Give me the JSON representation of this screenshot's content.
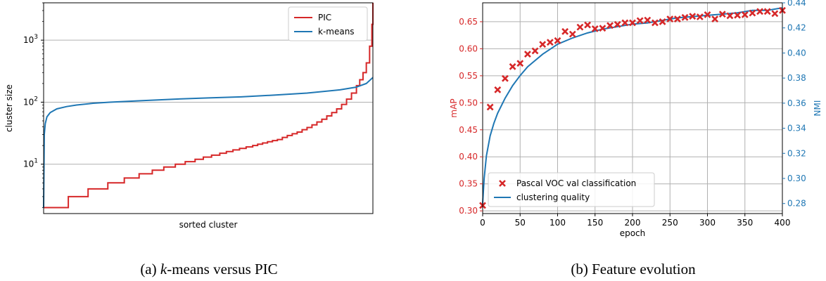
{
  "figure": {
    "caption_a": {
      "italic": "k",
      "text": "-means versus PIC"
    },
    "caption_b": "(b) Feature evolution",
    "caption_a_prefix": "(a) "
  },
  "colors": {
    "pic": "#d62728",
    "kmeans": "#1f77b4",
    "grid": "#b0b0b0"
  },
  "chart_data": [
    {
      "type": "line",
      "xlabel": "sorted cluster",
      "ylabel": "cluster size",
      "yscale": "log",
      "ylim": [
        1.6,
        4000
      ],
      "yticks": [
        {
          "value": 10,
          "base": "10",
          "exp": "1"
        },
        {
          "value": 100,
          "base": "10",
          "exp": "2"
        },
        {
          "value": 1000,
          "base": "10",
          "exp": "3"
        }
      ],
      "grid": "horizontal",
      "legend": {
        "placement": "top-right",
        "entries": [
          "PIC",
          "k-means"
        ]
      },
      "series": [
        {
          "name": "PIC",
          "steps": [
            [
              0.0,
              2
            ],
            [
              0.075,
              3
            ],
            [
              0.135,
              4
            ],
            [
              0.195,
              5
            ],
            [
              0.245,
              6
            ],
            [
              0.29,
              7
            ],
            [
              0.33,
              8
            ],
            [
              0.365,
              9
            ],
            [
              0.4,
              10
            ],
            [
              0.43,
              11
            ],
            [
              0.46,
              12
            ],
            [
              0.485,
              13
            ],
            [
              0.51,
              14
            ],
            [
              0.535,
              15
            ],
            [
              0.555,
              16
            ],
            [
              0.575,
              17
            ],
            [
              0.595,
              18
            ],
            [
              0.615,
              19
            ],
            [
              0.635,
              20
            ],
            [
              0.65,
              21
            ],
            [
              0.665,
              22
            ],
            [
              0.68,
              23
            ],
            [
              0.695,
              24
            ],
            [
              0.71,
              25
            ],
            [
              0.725,
              27
            ],
            [
              0.74,
              29
            ],
            [
              0.755,
              31
            ],
            [
              0.77,
              33
            ],
            [
              0.785,
              36
            ],
            [
              0.8,
              39
            ],
            [
              0.815,
              43
            ],
            [
              0.83,
              48
            ],
            [
              0.845,
              53
            ],
            [
              0.86,
              60
            ],
            [
              0.875,
              68
            ],
            [
              0.89,
              78
            ],
            [
              0.905,
              92
            ],
            [
              0.92,
              112
            ],
            [
              0.935,
              140
            ],
            [
              0.95,
              185
            ],
            [
              0.96,
              230
            ],
            [
              0.97,
              300
            ],
            [
              0.98,
              430
            ],
            [
              0.99,
              800
            ],
            [
              0.997,
              1800
            ],
            [
              1.0,
              4000
            ]
          ]
        },
        {
          "name": "k-means",
          "points": [
            [
              0.0,
              2
            ],
            [
              0.002,
              30
            ],
            [
              0.005,
              45
            ],
            [
              0.01,
              58
            ],
            [
              0.02,
              68
            ],
            [
              0.04,
              78
            ],
            [
              0.07,
              85
            ],
            [
              0.1,
              90
            ],
            [
              0.15,
              96
            ],
            [
              0.2,
              100
            ],
            [
              0.3,
              106
            ],
            [
              0.4,
              112
            ],
            [
              0.5,
              117
            ],
            [
              0.6,
              122
            ],
            [
              0.7,
              130
            ],
            [
              0.8,
              140
            ],
            [
              0.9,
              158
            ],
            [
              0.95,
              175
            ],
            [
              0.98,
              200
            ],
            [
              1.0,
              250
            ]
          ]
        }
      ]
    },
    {
      "type": "scatter",
      "xlabel": "epoch",
      "ylabel": "mAP",
      "ylabel_right": "NMI",
      "xlim": [
        0,
        400
      ],
      "ylim": [
        0.295,
        0.685
      ],
      "ylim_right": [
        0.272,
        0.44
      ],
      "xticks": [
        "0",
        "50",
        "100",
        "150",
        "200",
        "250",
        "300",
        "350",
        "400"
      ],
      "yticks": [
        "0.30",
        "0.35",
        "0.40",
        "0.45",
        "0.50",
        "0.55",
        "0.60",
        "0.65"
      ],
      "yticks_right": [
        "0.28",
        "0.30",
        "0.32",
        "0.34",
        "0.36",
        "0.38",
        "0.40",
        "0.42",
        "0.44"
      ],
      "grid": "both",
      "legend": {
        "placement": "lower-left",
        "entries": [
          "Pascal VOC val classification",
          "clustering quality"
        ]
      },
      "series": [
        {
          "name": "Pascal VOC val classification",
          "axis": "left",
          "x": [
            0,
            10,
            20,
            30,
            40,
            50,
            60,
            70,
            80,
            90,
            100,
            110,
            120,
            130,
            140,
            150,
            160,
            170,
            180,
            190,
            200,
            210,
            220,
            230,
            240,
            250,
            260,
            270,
            280,
            290,
            300,
            310,
            320,
            330,
            340,
            350,
            360,
            370,
            380,
            390,
            400
          ],
          "y": [
            0.31,
            0.492,
            0.524,
            0.545,
            0.567,
            0.573,
            0.59,
            0.596,
            0.608,
            0.612,
            0.615,
            0.632,
            0.627,
            0.64,
            0.644,
            0.637,
            0.638,
            0.643,
            0.645,
            0.648,
            0.648,
            0.652,
            0.653,
            0.648,
            0.65,
            0.655,
            0.655,
            0.658,
            0.66,
            0.659,
            0.663,
            0.655,
            0.664,
            0.661,
            0.662,
            0.663,
            0.666,
            0.669,
            0.669,
            0.665,
            0.671
          ]
        },
        {
          "name": "clustering quality",
          "axis": "right",
          "x": [
            0,
            2,
            5,
            10,
            15,
            20,
            30,
            40,
            50,
            60,
            70,
            80,
            90,
            100,
            120,
            140,
            160,
            180,
            200,
            220,
            240,
            260,
            280,
            300,
            320,
            340,
            360,
            380,
            400
          ],
          "y": [
            0.28,
            0.3,
            0.318,
            0.334,
            0.344,
            0.352,
            0.364,
            0.374,
            0.382,
            0.389,
            0.394,
            0.399,
            0.403,
            0.407,
            0.412,
            0.416,
            0.419,
            0.421,
            0.423,
            0.424,
            0.426,
            0.428,
            0.429,
            0.43,
            0.431,
            0.432,
            0.434,
            0.434,
            0.436
          ]
        }
      ]
    }
  ]
}
